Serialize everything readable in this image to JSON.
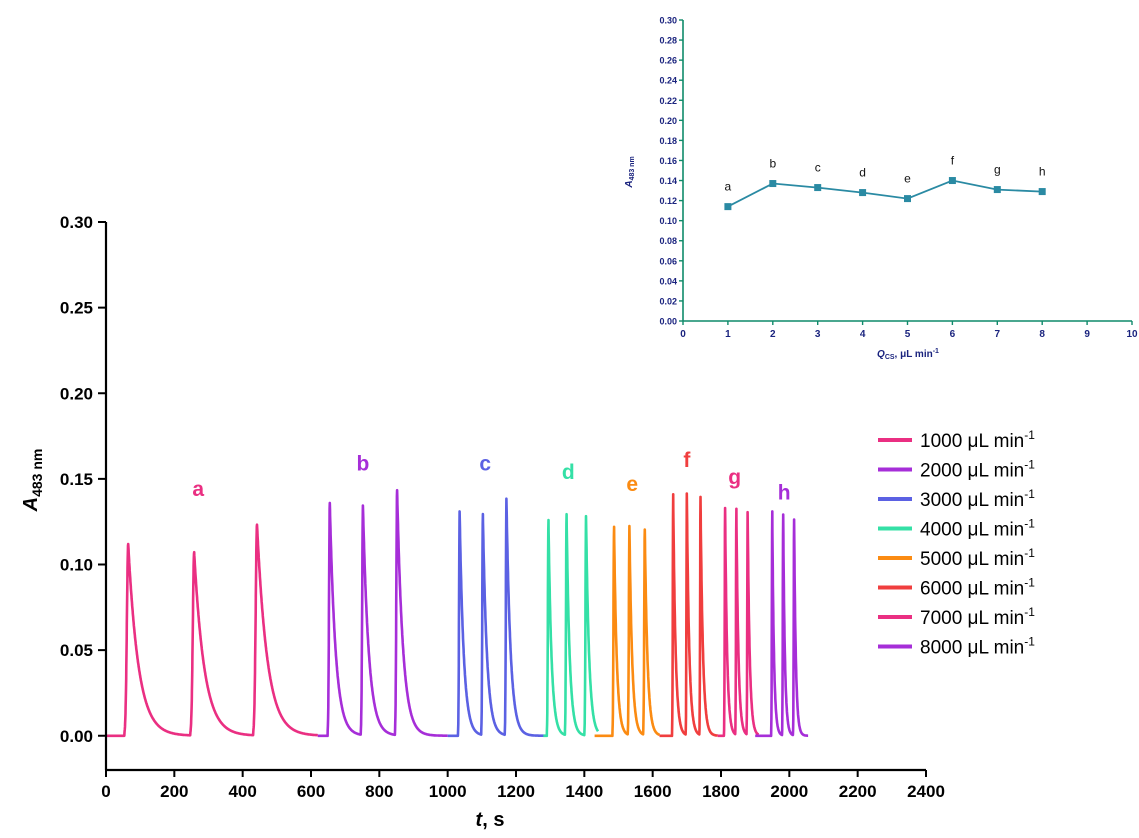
{
  "chart_data": [
    {
      "type": "line",
      "xlabel": "t, s",
      "ylabel": "A483 nm",
      "ylabel_main": "A",
      "ylabel_sub": "483 nm",
      "xlabel_main": "t",
      "xlabel_unit": ", s",
      "xlim": [
        0,
        2400
      ],
      "ylim": [
        -0.02,
        0.3
      ],
      "x_ticks": [
        0,
        200,
        400,
        600,
        800,
        1000,
        1200,
        1400,
        1600,
        1800,
        2000,
        2200,
        2400
      ],
      "y_ticks": [
        "0.00",
        "0.05",
        "0.10",
        "0.15",
        "0.20",
        "0.25",
        "0.30"
      ],
      "legend_position": "right",
      "legend_suffix": "min",
      "legend_exp": "-1",
      "series": [
        {
          "name": "1000 µL min-1",
          "name_main": "1000 μL",
          "color": "#ea2f82",
          "label": "a",
          "range": [
            0,
            620
          ],
          "peak_times": [
            65,
            258,
            442
          ],
          "peak_heights": [
            0.112,
            0.107,
            0.123
          ],
          "width": 7,
          "tau": 30,
          "label_x": 270,
          "label_y": 0.14
        },
        {
          "name": "2000 µL min-1",
          "name_main": "2000 μL",
          "color": "#a62ed8",
          "label": "b",
          "range": [
            620,
            1000
          ],
          "peak_times": [
            655,
            752,
            852
          ],
          "peak_heights": [
            0.136,
            0.134,
            0.143
          ],
          "width": 4,
          "tau": 17,
          "label_x": 752,
          "label_y": 0.155
        },
        {
          "name": "3000 µL min-1",
          "name_main": "3000 μL",
          "color": "#5b61e3",
          "label": "c",
          "range": [
            1000,
            1290
          ],
          "peak_times": [
            1035,
            1103,
            1172
          ],
          "peak_heights": [
            0.131,
            0.129,
            0.138
          ],
          "width": 3,
          "tau": 12,
          "label_x": 1110,
          "label_y": 0.155
        },
        {
          "name": "4000 µL min-1",
          "name_main": "4000 μL",
          "color": "#34e0a6",
          "label": "d",
          "range": [
            1280,
            1440
          ],
          "peak_times": [
            1295,
            1348,
            1405
          ],
          "peak_heights": [
            0.126,
            0.129,
            0.128
          ],
          "width": 3,
          "tau": 9,
          "label_x": 1353,
          "label_y": 0.15
        },
        {
          "name": "5000 µL min-1",
          "name_main": "5000 μL",
          "color": "#fb8b12",
          "label": "e",
          "range": [
            1430,
            1620
          ],
          "peak_times": [
            1487,
            1532,
            1577
          ],
          "peak_heights": [
            0.122,
            0.122,
            0.12
          ],
          "width": 3,
          "tau": 8,
          "label_x": 1540,
          "label_y": 0.143
        },
        {
          "name": "6000 µL min-1",
          "name_main": "6000 μL",
          "color": "#f03e3e",
          "label": "f",
          "range": [
            1620,
            1790
          ],
          "peak_times": [
            1660,
            1700,
            1740
          ],
          "peak_heights": [
            0.141,
            0.141,
            0.139
          ],
          "width": 2,
          "tau": 7,
          "label_x": 1700,
          "label_y": 0.157
        },
        {
          "name": "7000 µL min-1",
          "name_main": "7000 μL",
          "color": "#ea2f82",
          "label": "g",
          "range": [
            1790,
            1910
          ],
          "peak_times": [
            1812,
            1845,
            1878
          ],
          "peak_heights": [
            0.133,
            0.132,
            0.13
          ],
          "width": 2,
          "tau": 6,
          "label_x": 1840,
          "label_y": 0.147
        },
        {
          "name": "8000 µL min-1",
          "name_main": "8000 μL",
          "color": "#a62ed8",
          "label": "h",
          "range": [
            1900,
            2055
          ],
          "peak_times": [
            1950,
            1982,
            2014
          ],
          "peak_heights": [
            0.131,
            0.129,
            0.126
          ],
          "width": 2,
          "tau": 5,
          "label_x": 1985,
          "label_y": 0.138
        }
      ]
    },
    {
      "type": "line",
      "xlabel": "QCS, µL min-1",
      "xlabel_q": "Q",
      "xlabel_sub": "CS",
      "xlabel_unit": ", μL min",
      "xlabel_exp": "-1",
      "ylabel": "A483 nm",
      "ylabel_main": "A",
      "ylabel_sub": "483 nm",
      "xlim": [
        0,
        10
      ],
      "ylim": [
        0,
        0.3
      ],
      "x_ticks": [
        "0",
        "1",
        "2",
        "3",
        "4",
        "5",
        "6",
        "7",
        "8",
        "9",
        "10"
      ],
      "y_ticks": [
        "0.00",
        "0.02",
        "0.04",
        "0.06",
        "0.08",
        "0.10",
        "0.12",
        "0.14",
        "0.16",
        "0.18",
        "0.20",
        "0.22",
        "0.24",
        "0.26",
        "0.28",
        "0.30"
      ],
      "color": "#2a8aa3",
      "axis_color": "#0f8a6a",
      "label_color": "#1a237e",
      "points": [
        {
          "x": 1,
          "y": 0.114,
          "label": "a"
        },
        {
          "x": 2,
          "y": 0.137,
          "label": "b"
        },
        {
          "x": 3,
          "y": 0.133,
          "label": "c"
        },
        {
          "x": 4,
          "y": 0.128,
          "label": "d"
        },
        {
          "x": 5,
          "y": 0.122,
          "label": "e"
        },
        {
          "x": 6,
          "y": 0.14,
          "label": "f"
        },
        {
          "x": 7,
          "y": 0.131,
          "label": "g"
        },
        {
          "x": 8,
          "y": 0.129,
          "label": "h"
        }
      ]
    }
  ]
}
